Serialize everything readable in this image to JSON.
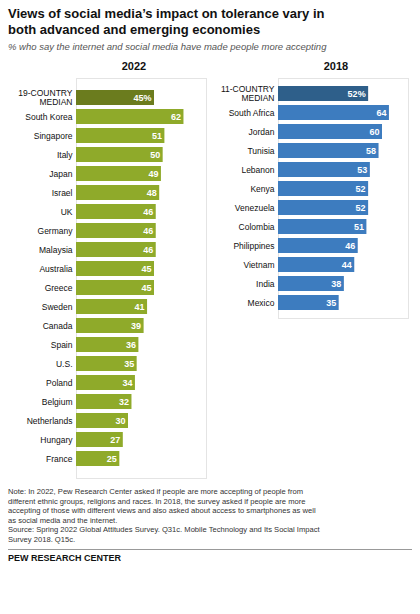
{
  "title": "Views of social media’s impact on tolerance vary in\nboth advanced and emerging economies",
  "subtitle": "% who say the internet and social media have made people more accepting",
  "note": "Note: In 2022, Pew Research Center asked if people are more accepting of people from\ndifferent ethnic groups, religions and races. In 2018, the survey asked if people are more\naccepting of those with different views and also asked about access to smartphones as well\nas social media and the internet.\nSource: Spring 2022 Global Attitudes Survey. Q31c. Mobile Technology and Its Social Impact\nSurvey 2018. Q15c.",
  "footer": "PEW RESEARCH CENTER",
  "chart_data": [
    {
      "type": "bar",
      "orientation": "horizontal",
      "title": "2022",
      "categories": [
        "19-COUNTRY\nMEDIAN",
        "South Korea",
        "Singapore",
        "Italy",
        "Japan",
        "Israel",
        "UK",
        "Germany",
        "Malaysia",
        "Australia",
        "Greece",
        "Sweden",
        "Canada",
        "Spain",
        "U.S.",
        "Poland",
        "Belgium",
        "Netherlands",
        "Hungary",
        "France"
      ],
      "values": [
        45,
        62,
        51,
        50,
        49,
        48,
        46,
        46,
        46,
        45,
        45,
        41,
        39,
        36,
        35,
        34,
        32,
        30,
        27,
        25
      ],
      "value_labels": [
        "45%",
        "62",
        "51",
        "50",
        "49",
        "48",
        "46",
        "46",
        "46",
        "45",
        "45",
        "41",
        "39",
        "36",
        "35",
        "34",
        "32",
        "30",
        "27",
        "25"
      ],
      "colors": [
        "#6b7c1e",
        "#8faa2a",
        "#8faa2a",
        "#8faa2a",
        "#8faa2a",
        "#8faa2a",
        "#8faa2a",
        "#8faa2a",
        "#8faa2a",
        "#8faa2a",
        "#8faa2a",
        "#8faa2a",
        "#8faa2a",
        "#8faa2a",
        "#8faa2a",
        "#8faa2a",
        "#8faa2a",
        "#8faa2a",
        "#8faa2a",
        "#8faa2a"
      ],
      "xlim": [
        0,
        75
      ],
      "data_labels": true,
      "tick_labels": "y",
      "grid": false
    },
    {
      "type": "bar",
      "orientation": "horizontal",
      "title": "2018",
      "categories": [
        "11-COUNTRY\nMEDIAN",
        "South Africa",
        "Jordan",
        "Tunisia",
        "Lebanon",
        "Kenya",
        "Venezuela",
        "Colombia",
        "Philippines",
        "Vietnam",
        "India",
        "Mexico"
      ],
      "values": [
        52,
        64,
        60,
        58,
        53,
        52,
        52,
        51,
        46,
        44,
        38,
        35
      ],
      "value_labels": [
        "52%",
        "64",
        "60",
        "58",
        "53",
        "52",
        "52",
        "51",
        "46",
        "44",
        "38",
        "35"
      ],
      "colors": [
        "#2e5f8a",
        "#3d7cbf",
        "#3d7cbf",
        "#3d7cbf",
        "#3d7cbf",
        "#3d7cbf",
        "#3d7cbf",
        "#3d7cbf",
        "#3d7cbf",
        "#3d7cbf",
        "#3d7cbf",
        "#3d7cbf"
      ],
      "xlim": [
        0,
        75
      ],
      "data_labels": true,
      "tick_labels": "y",
      "grid": false
    }
  ]
}
